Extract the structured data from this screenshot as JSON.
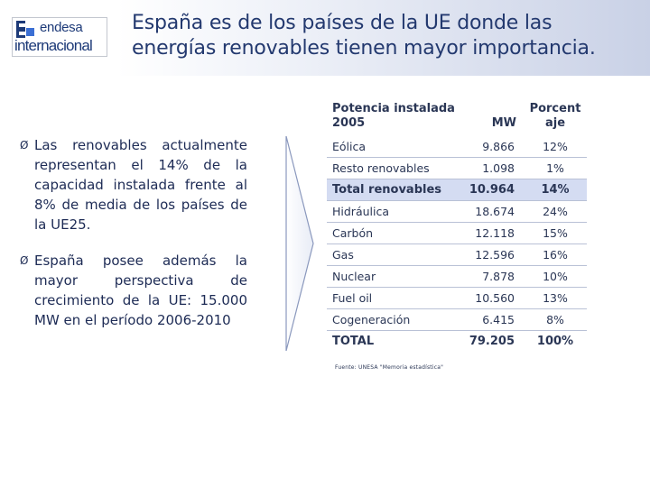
{
  "logo": {
    "top_text": "endesa",
    "bottom_text": "internacional"
  },
  "title": {
    "line1": "España es de los países de la UE donde las",
    "line2": "energías renovables tienen mayor importancia."
  },
  "bullets": [
    {
      "text": "Las renovables actualmente representan el 14% de la capacidad instalada frente al 8% de media de los países de la UE25."
    },
    {
      "text": "España posee además la mayor perspectiva de crecimiento de la UE: 15.000 MW en el período 2006-2010"
    }
  ],
  "bullet_marker": "Ø",
  "table": {
    "header": {
      "name_line1": "Potencia instalada",
      "name_line2": "2005",
      "mw": "MW",
      "pct_line1": "Porcent",
      "pct_line2": "aje"
    },
    "rows": [
      {
        "name": "Eólica",
        "mw": "9.866",
        "pct": "12%"
      },
      {
        "name": "Resto renovables",
        "mw": "1.098",
        "pct": "1%"
      },
      {
        "name": "Total renovables",
        "mw": "10.964",
        "pct": "14%"
      },
      {
        "name": "Hidráulica",
        "mw": "18.674",
        "pct": "24%"
      },
      {
        "name": "Carbón",
        "mw": "12.118",
        "pct": "15%"
      },
      {
        "name": "Gas",
        "mw": "12.596",
        "pct": "16%"
      },
      {
        "name": "Nuclear",
        "mw": "7.878",
        "pct": "10%"
      },
      {
        "name": "Fuel oil",
        "mw": "10.560",
        "pct": "13%"
      },
      {
        "name": "Cogeneración",
        "mw": "6.415",
        "pct": "8%"
      },
      {
        "name": "TOTAL",
        "mw": "79.205",
        "pct": "100%"
      }
    ]
  },
  "source": "Fuente: UNESA \"Memoria estadística\"",
  "colors": {
    "title": "#23396f",
    "highlight_row": "#d4dcf2",
    "header_band_end": "#c9d1e6"
  }
}
